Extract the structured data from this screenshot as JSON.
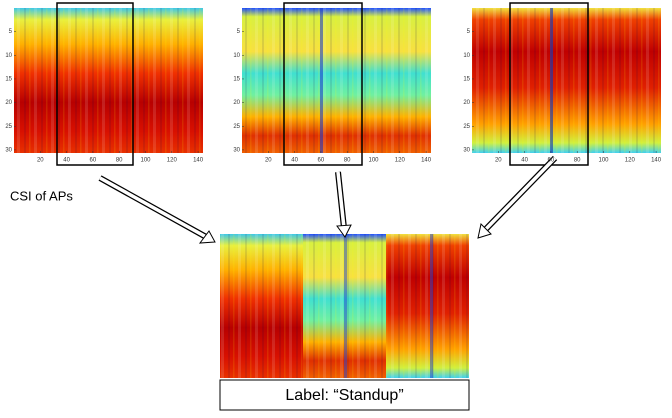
{
  "panels": [
    {
      "x_ticks": [
        20,
        40,
        60,
        80,
        100,
        120,
        140
      ],
      "y_ticks": [
        5,
        10,
        15,
        20,
        25,
        30
      ]
    },
    {
      "x_ticks": [
        20,
        40,
        60,
        80,
        100,
        120,
        140
      ],
      "y_ticks": [
        5,
        10,
        15,
        20,
        25,
        30
      ]
    },
    {
      "x_ticks": [
        20,
        40,
        60,
        80,
        100,
        120,
        140
      ],
      "y_ticks": [
        5,
        10,
        15,
        20,
        25,
        30
      ]
    }
  ],
  "caption": "CSI of APs",
  "label": "Label: “Standup”"
}
